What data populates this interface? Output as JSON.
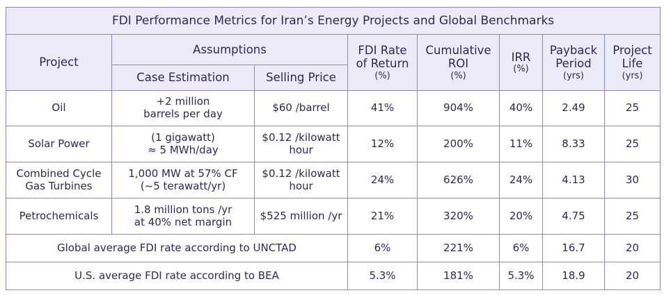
{
  "title": "FDI Performance Metrics for Iran’s Energy Projects and Global Benchmarks",
  "headers": {
    "project": "Project",
    "assumptions": "Assumptions",
    "case_estimation": "Case Estimation",
    "selling_price": "Selling Price",
    "fdi_rate": "FDI Rate of Return",
    "fdi_rate_unit": "(%)",
    "cumulative_roi": "Cumulative ROI",
    "cumulative_roi_unit": "(%)",
    "irr": "IRR",
    "irr_unit": "(%)",
    "payback": "Payback Period",
    "payback_unit": "(yrs)",
    "life": "Project Life",
    "life_unit": "(yrs)"
  },
  "rows": [
    {
      "project": "Oil",
      "case_line1": "+2 million",
      "case_line2": "barrels per day",
      "price_line1": "$60 /barrel",
      "price_line2": "",
      "fdi": "41%",
      "roi": "904%",
      "irr": "40%",
      "payback": "2.49",
      "life": "25"
    },
    {
      "project": "Solar Power",
      "case_line1": "(1 gigawatt)",
      "case_line2": "≈ 5 MWh/day",
      "price_line1": "$0.12 /kilowatt",
      "price_line2": "hour",
      "fdi": "12%",
      "roi": "200%",
      "irr": "11%",
      "payback": "8.33",
      "life": "25"
    },
    {
      "project_line1": "Combined Cycle",
      "project_line2": "Gas Turbines",
      "case_line1": "1,000 MW at 57% CF",
      "case_line2": "(~5 terawatt/yr)",
      "price_line1": "$0.12 /kilowatt",
      "price_line2": "hour",
      "fdi": "24%",
      "roi": "626%",
      "irr": "24%",
      "payback": "4.13",
      "life": "30"
    },
    {
      "project": "Petrochemicals",
      "case_line1": "1.8 million tons /yr",
      "case_line2": "at 40% net margin",
      "price_line1": "$525 million /yr",
      "price_line2": "",
      "fdi": "21%",
      "roi": "320%",
      "irr": "20%",
      "payback": "4.75",
      "life": "25"
    }
  ],
  "benchmarks": [
    {
      "label": "Global average FDI rate according to UNCTAD",
      "fdi": "6%",
      "roi": "221%",
      "irr": "6%",
      "payback": "16.7",
      "life": "20"
    },
    {
      "label": "U.S. average FDI rate according to BEA",
      "fdi": "5.3%",
      "roi": "181%",
      "irr": "5.3%",
      "payback": "18.9",
      "life": "20"
    }
  ]
}
